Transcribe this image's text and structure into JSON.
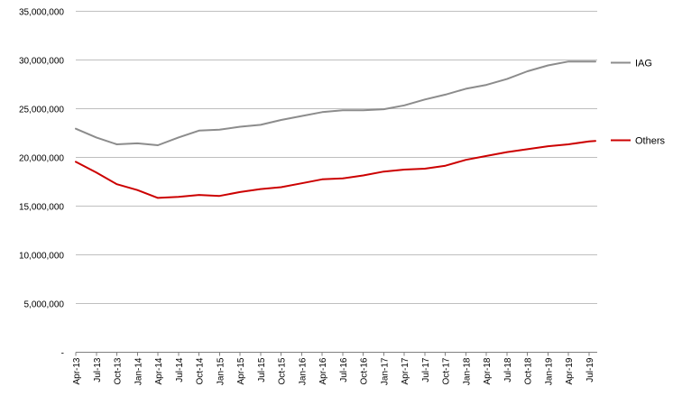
{
  "chart_data": {
    "type": "line",
    "ylim": [
      0,
      35000000
    ],
    "y_ticks": [
      0,
      5000000,
      10000000,
      15000000,
      20000000,
      25000000,
      30000000,
      35000000
    ],
    "y_tick_labels": [
      "-",
      "5,000,000",
      "10,000,000",
      "15,000,000",
      "20,000,000",
      "25,000,000",
      "30,000,000",
      "35,000,000"
    ],
    "grid": true,
    "legend_position": "right",
    "x_labels": [
      "Apr-13",
      "Jul-13",
      "Oct-13",
      "Jan-14",
      "Apr-14",
      "Jul-14",
      "Oct-14",
      "Jan-15",
      "Apr-15",
      "Jul-15",
      "Oct-15",
      "Jan-16",
      "Apr-16",
      "Jul-16",
      "Oct-16",
      "Jan-17",
      "Apr-17",
      "Jul-17",
      "Oct-17",
      "Jan-18",
      "Apr-18",
      "Jul-18",
      "Oct-18",
      "Jan-19",
      "Apr-19",
      "Jul-19"
    ],
    "x": [
      "Apr-13",
      "Jul-13",
      "Oct-13",
      "Jan-14",
      "Apr-14",
      "Jul-14",
      "Oct-14",
      "Jan-15",
      "Apr-15",
      "Jul-15",
      "Oct-15",
      "Jan-16",
      "Apr-16",
      "Jul-16",
      "Oct-16",
      "Jan-17",
      "Apr-17",
      "Jul-17",
      "Oct-17",
      "Jan-18",
      "Apr-18",
      "Jul-18",
      "Oct-18",
      "Jan-19",
      "Apr-19",
      "Jul-19",
      "Sep-19"
    ],
    "series": [
      {
        "name": "IAG",
        "color": "#8c8c8c",
        "values": [
          22900000,
          22000000,
          21300000,
          21400000,
          21200000,
          22000000,
          22700000,
          22800000,
          23100000,
          23300000,
          23800000,
          24200000,
          24600000,
          24800000,
          24800000,
          24900000,
          25300000,
          25900000,
          26400000,
          27000000,
          27400000,
          28000000,
          28800000,
          29400000,
          29800000,
          29800000,
          29800000
        ]
      },
      {
        "name": "Others",
        "color": "#cc0000",
        "values": [
          19500000,
          18400000,
          17200000,
          16600000,
          15800000,
          15900000,
          16100000,
          16000000,
          16400000,
          16700000,
          16900000,
          17300000,
          17700000,
          17800000,
          18100000,
          18500000,
          18700000,
          18800000,
          19100000,
          19700000,
          20100000,
          20500000,
          20800000,
          21100000,
          21300000,
          21600000,
          21650000
        ]
      }
    ]
  }
}
